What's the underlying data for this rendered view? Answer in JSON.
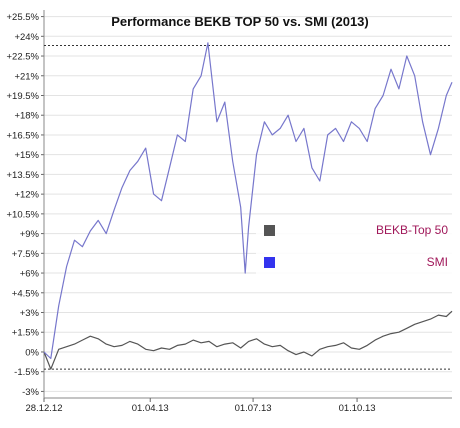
{
  "chart_data": {
    "type": "line",
    "title": "Performance BEKB TOP 50 vs. SMI (2013)",
    "xlabel": "",
    "ylabel": "",
    "x_range": [
      "2012-12-28",
      "2013-12-24"
    ],
    "ylim": [
      -3.5,
      26
    ],
    "y_ticks": [
      "+25.5%",
      "+24%",
      "+22.5%",
      "+21%",
      "+19.5%",
      "+18%",
      "+16.5%",
      "+15%",
      "+13.5%",
      "+12%",
      "+10.5%",
      "+9%",
      "+7.5%",
      "+6%",
      "+4.5%",
      "+3%",
      "+1.5%",
      "0%",
      "-1.5%",
      "-3%"
    ],
    "y_tick_values": [
      25.5,
      24,
      22.5,
      21,
      19.5,
      18,
      16.5,
      15,
      13.5,
      12,
      10.5,
      9,
      7.5,
      6,
      4.5,
      3,
      1.5,
      0,
      -1.5,
      -3
    ],
    "x_ticks": [
      {
        "label": "28.12.12",
        "date": "2012-12-28"
      },
      {
        "label": "01.04.13",
        "date": "2013-04-01"
      },
      {
        "label": "01.07.13",
        "date": "2013-07-01"
      },
      {
        "label": "01.10.13",
        "date": "2013-10-01"
      }
    ],
    "reference_lines": [
      23.3,
      -1.3
    ],
    "grid": "horizontal",
    "legend_position": "center-right",
    "series": [
      {
        "name": "BEKB-Top 50",
        "color": "#555555",
        "dates": [
          "2012-12-28",
          "2013-01-03",
          "2013-01-10",
          "2013-01-17",
          "2013-01-24",
          "2013-01-31",
          "2013-02-07",
          "2013-02-14",
          "2013-02-21",
          "2013-02-28",
          "2013-03-07",
          "2013-03-14",
          "2013-03-21",
          "2013-03-28",
          "2013-04-04",
          "2013-04-11",
          "2013-04-18",
          "2013-04-25",
          "2013-05-02",
          "2013-05-09",
          "2013-05-16",
          "2013-05-23",
          "2013-05-30",
          "2013-06-06",
          "2013-06-13",
          "2013-06-20",
          "2013-06-27",
          "2013-07-04",
          "2013-07-11",
          "2013-07-18",
          "2013-07-25",
          "2013-08-01",
          "2013-08-08",
          "2013-08-15",
          "2013-08-22",
          "2013-08-29",
          "2013-09-05",
          "2013-09-12",
          "2013-09-19",
          "2013-09-26",
          "2013-10-03",
          "2013-10-10",
          "2013-10-17",
          "2013-10-24",
          "2013-10-31",
          "2013-11-07",
          "2013-11-14",
          "2013-11-21",
          "2013-11-28",
          "2013-12-05",
          "2013-12-12",
          "2013-12-19",
          "2013-12-24"
        ],
        "values": [
          0.0,
          -1.3,
          0.2,
          0.4,
          0.6,
          0.9,
          1.2,
          1.0,
          0.6,
          0.4,
          0.5,
          0.8,
          0.6,
          0.2,
          0.1,
          0.3,
          0.2,
          0.5,
          0.6,
          0.9,
          0.7,
          0.8,
          0.4,
          0.6,
          0.7,
          0.3,
          0.8,
          1.0,
          0.6,
          0.4,
          0.5,
          0.1,
          -0.2,
          0.0,
          -0.3,
          0.2,
          0.4,
          0.5,
          0.7,
          0.3,
          0.2,
          0.5,
          0.9,
          1.2,
          1.4,
          1.5,
          1.8,
          2.1,
          2.3,
          2.5,
          2.8,
          2.7,
          3.1
        ]
      },
      {
        "name": "SMI",
        "color": "#7777cc",
        "dates": [
          "2012-12-28",
          "2013-01-03",
          "2013-01-10",
          "2013-01-17",
          "2013-01-24",
          "2013-01-31",
          "2013-02-07",
          "2013-02-14",
          "2013-02-21",
          "2013-02-28",
          "2013-03-07",
          "2013-03-14",
          "2013-03-21",
          "2013-03-28",
          "2013-04-04",
          "2013-04-11",
          "2013-04-18",
          "2013-04-25",
          "2013-05-02",
          "2013-05-09",
          "2013-05-16",
          "2013-05-22",
          "2013-05-30",
          "2013-06-06",
          "2013-06-13",
          "2013-06-20",
          "2013-06-24",
          "2013-06-27",
          "2013-07-04",
          "2013-07-11",
          "2013-07-18",
          "2013-07-25",
          "2013-08-01",
          "2013-08-08",
          "2013-08-15",
          "2013-08-22",
          "2013-08-29",
          "2013-09-05",
          "2013-09-12",
          "2013-09-19",
          "2013-09-26",
          "2013-10-03",
          "2013-10-10",
          "2013-10-17",
          "2013-10-24",
          "2013-10-31",
          "2013-11-07",
          "2013-11-14",
          "2013-11-21",
          "2013-11-28",
          "2013-12-05",
          "2013-12-12",
          "2013-12-19",
          "2013-12-24"
        ],
        "values": [
          0.0,
          -0.5,
          3.5,
          6.5,
          8.5,
          8.0,
          9.2,
          10.0,
          9.0,
          10.8,
          12.5,
          13.8,
          14.5,
          15.5,
          12.0,
          11.5,
          14.0,
          16.5,
          16.0,
          20.0,
          21.0,
          23.5,
          17.5,
          19.0,
          14.5,
          11.0,
          6.0,
          9.5,
          15.0,
          17.5,
          16.5,
          17.0,
          18.0,
          16.0,
          17.0,
          14.0,
          13.0,
          16.5,
          17.0,
          16.0,
          17.5,
          17.0,
          16.0,
          18.5,
          19.5,
          21.5,
          20.0,
          22.5,
          21.0,
          17.5,
          15.0,
          17.0,
          19.5,
          20.5
        ]
      }
    ]
  }
}
